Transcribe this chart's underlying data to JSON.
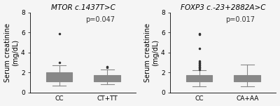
{
  "left_title": "MTOR c.1437T>C",
  "right_title": "FOXP3 c.-23+2882A>C",
  "ylabel": "Serum creatinine\n(mg/dL)",
  "ylim": [
    0,
    8
  ],
  "yticks": [
    0,
    2,
    4,
    6,
    8
  ],
  "left_pvalue": "p=0.047",
  "right_pvalue": "p=0.017",
  "left_groups": [
    "CC",
    "CT+TT"
  ],
  "right_groups": [
    "CC",
    "CA+AA"
  ],
  "box_color": "#d0d0d0",
  "box_linecolor": "#888888",
  "whisker_color": "#888888",
  "median_color": "#888888",
  "flier_color": "#333333",
  "left_CC": {
    "med": 1.55,
    "q1": 1.1,
    "q3": 2.0,
    "whislo": 0.7,
    "whishi": 2.7,
    "fliers": [
      5.9,
      3.0
    ]
  },
  "left_CTTT": {
    "med": 1.4,
    "q1": 1.1,
    "q3": 1.7,
    "whislo": 0.8,
    "whishi": 2.3,
    "fliers": [
      2.6,
      2.5
    ]
  },
  "right_CC": {
    "med": 1.4,
    "q1": 1.1,
    "q3": 1.7,
    "whislo": 0.6,
    "whishi": 2.2,
    "fliers": [
      5.8,
      5.9,
      4.4,
      3.1,
      3.0,
      2.9,
      2.8,
      2.7,
      2.6,
      2.5,
      2.4,
      2.3
    ]
  },
  "right_CAAA": {
    "med": 1.4,
    "q1": 1.1,
    "q3": 1.7,
    "whislo": 0.6,
    "whishi": 2.8,
    "fliers": []
  },
  "background_color": "#f5f5f5",
  "title_fontsize": 7.5,
  "label_fontsize": 7,
  "tick_fontsize": 6.5,
  "pvalue_fontsize": 7
}
